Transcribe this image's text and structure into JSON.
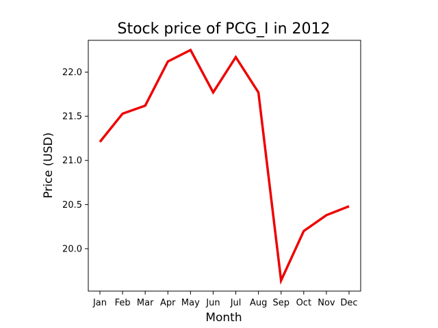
{
  "chart_data": {
    "type": "line",
    "title": "Stock price of PCG_I in 2012",
    "xlabel": "Month",
    "ylabel": "Price (USD)",
    "categories": [
      "Jan",
      "Feb",
      "Mar",
      "Apr",
      "May",
      "Jun",
      "Jul",
      "Aug",
      "Sep",
      "Oct",
      "Nov",
      "Dec"
    ],
    "series": [
      {
        "color": "#ee0000",
        "values": [
          21.21,
          21.53,
          21.62,
          22.12,
          22.25,
          21.77,
          22.17,
          21.77,
          19.64,
          20.2,
          20.38,
          20.48
        ]
      }
    ],
    "ylim": [
      19.52,
      22.36
    ],
    "yticks": [
      20.0,
      20.5,
      21.0,
      21.5,
      22.0
    ],
    "ytick_labels": [
      "20.0",
      "20.5",
      "21.0",
      "21.5",
      "22.0"
    ],
    "grid": false,
    "legend": "none"
  }
}
